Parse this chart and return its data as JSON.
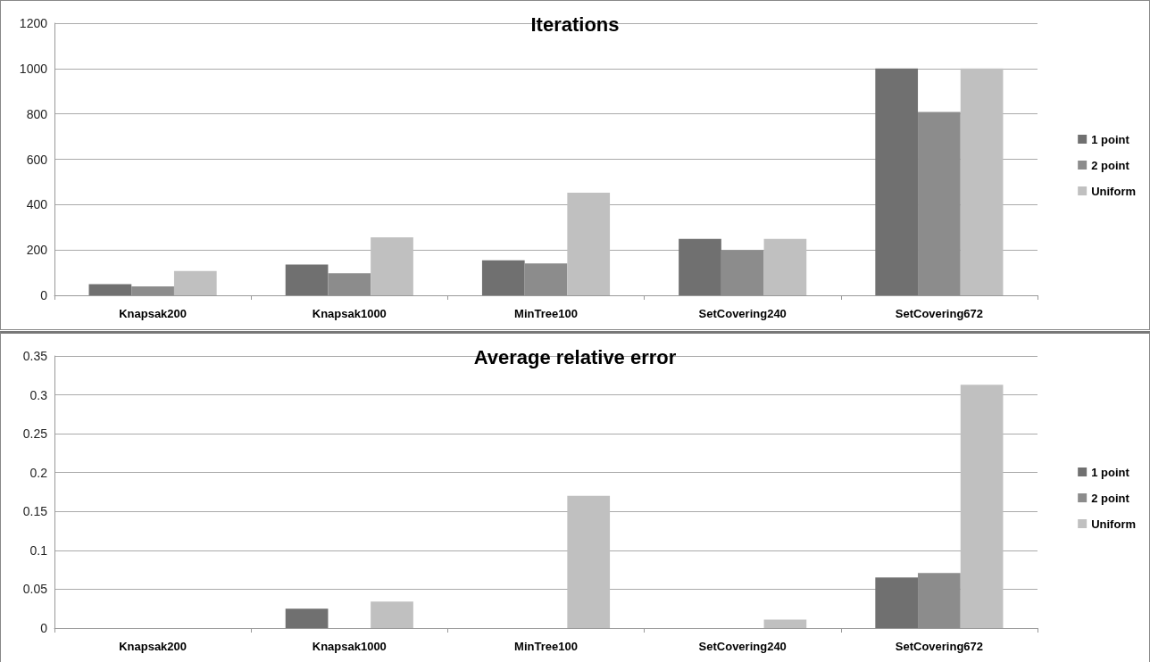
{
  "chart_data": [
    {
      "type": "bar",
      "title": "Iterations",
      "categories": [
        "Knapsak200",
        "Knapsak1000",
        "MinTree100",
        "SetCovering240",
        "SetCovering672"
      ],
      "series": [
        {
          "name": "1 point",
          "color": "#707070",
          "values": [
            49,
            136,
            154,
            249,
            1000
          ]
        },
        {
          "name": "2 point",
          "color": "#8c8c8c",
          "values": [
            39,
            97,
            141,
            200,
            809
          ]
        },
        {
          "name": "Uniform",
          "color": "#c0c0c0",
          "values": [
            107,
            256,
            452,
            249,
            1000
          ]
        }
      ],
      "ylim": [
        0,
        1200
      ],
      "yticks": [
        0,
        200,
        400,
        600,
        800,
        1000,
        1200
      ],
      "grid": "y",
      "legend": "right"
    },
    {
      "type": "bar",
      "title": "Average relative error",
      "categories": [
        "Knapsak200",
        "Knapsak1000",
        "MinTree100",
        "SetCovering240",
        "SetCovering672"
      ],
      "series": [
        {
          "name": "1 point",
          "color": "#707070",
          "values": [
            0,
            0.025,
            0,
            0,
            0.065
          ]
        },
        {
          "name": "2 point",
          "color": "#8c8c8c",
          "values": [
            0,
            0,
            0,
            0,
            0.071
          ]
        },
        {
          "name": "Uniform",
          "color": "#c0c0c0",
          "values": [
            0,
            0.034,
            0.17,
            0.011,
            0.313
          ]
        }
      ],
      "ylim": [
        0,
        0.35
      ],
      "yticks": [
        0,
        0.05,
        0.1,
        0.15,
        0.2,
        0.25,
        0.3,
        0.35
      ],
      "grid": "y",
      "legend": "right"
    }
  ]
}
